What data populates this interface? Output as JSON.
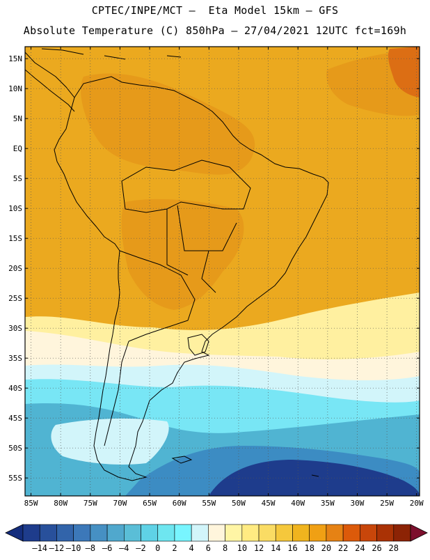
{
  "title_line1": "CPTEC/INPE/MCT –  Eta Model 15km – GFS",
  "title_line2": "Absolute Temperature (C) 850hPa – 27/04/2021 12UTC fct=169h",
  "lat_labels": [
    "15N",
    "10N",
    "5N",
    "EQ",
    "5S",
    "10S",
    "15S",
    "20S",
    "25S",
    "30S",
    "35S",
    "40S",
    "45S",
    "50S",
    "55S"
  ],
  "lat_values": [
    15,
    10,
    5,
    0,
    -5,
    -10,
    -15,
    -20,
    -25,
    -30,
    -35,
    -40,
    -45,
    -50,
    -55
  ],
  "lon_labels": [
    "85W",
    "80W",
    "75W",
    "70W",
    "65W",
    "60W",
    "55W",
    "50W",
    "45W",
    "40W",
    "35W",
    "30W",
    "25W",
    "20W"
  ],
  "lon_values": [
    -85,
    -80,
    -75,
    -70,
    -65,
    -60,
    -55,
    -50,
    -45,
    -40,
    -35,
    -30,
    -25,
    -20
  ],
  "domain": {
    "lon_min": -86,
    "lon_max": -19.5,
    "lat_min": -58,
    "lat_max": 17
  },
  "colorbar": {
    "labels": [
      "–14",
      "–12",
      "–10",
      "–8",
      "–6",
      "–4",
      "–2",
      "0",
      "2",
      "4",
      "6",
      "8",
      "10",
      "12",
      "14",
      "16",
      "18",
      "20",
      "22",
      "24",
      "26",
      "28"
    ],
    "colors": [
      "#1e3c8c",
      "#28509b",
      "#3264aa",
      "#3c78b9",
      "#4690c3",
      "#50a8cd",
      "#5abed7",
      "#5fd2e6",
      "#6ee6f0",
      "#78f5ff",
      "#d2f5fa",
      "#fff5dc",
      "#fff5a5",
      "#ffeb82",
      "#fadc64",
      "#f5c83c",
      "#f0b41e",
      "#f0a014",
      "#e68214",
      "#dc5a0a",
      "#c8460a",
      "#aa3205",
      "#8c2305"
    ]
  },
  "colors": {
    "warm_orange": "#eba91f",
    "hot_orange": "#e69a1a",
    "deep_orange": "#dc6e14",
    "pale_yellow": "#fff0a0",
    "cream": "#fff5dc",
    "light_cyan": "#d2f5fa",
    "cyan": "#78e6f5",
    "teal": "#50b4d2",
    "blue": "#3c8cc3",
    "navy": "#1e3c8c",
    "coast": "#000000"
  }
}
